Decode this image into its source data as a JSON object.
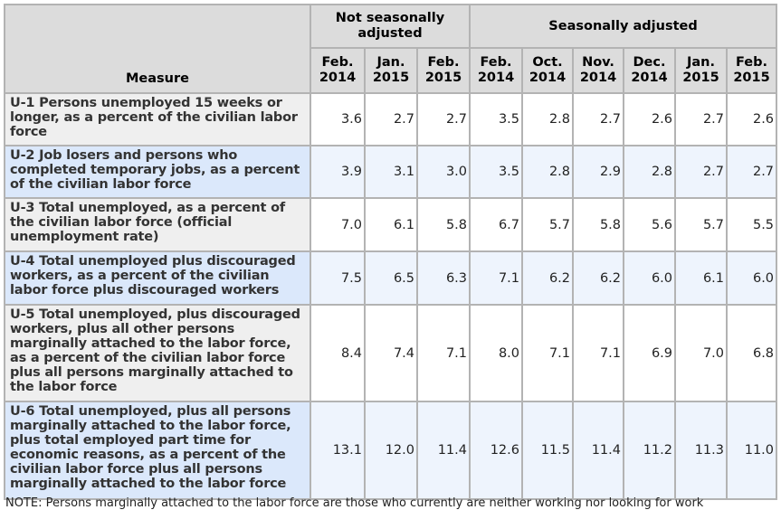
{
  "header": {
    "measure": "Measure",
    "group_nsa": "Not seasonally adjusted",
    "group_sa": "Seasonally adjusted",
    "columns": [
      [
        "Feb.",
        "2014"
      ],
      [
        "Jan.",
        "2015"
      ],
      [
        "Feb.",
        "2015"
      ],
      [
        "Feb.",
        "2014"
      ],
      [
        "Oct.",
        "2014"
      ],
      [
        "Nov.",
        "2014"
      ],
      [
        "Dec.",
        "2014"
      ],
      [
        "Jan.",
        "2015"
      ],
      [
        "Feb.",
        "2015"
      ]
    ]
  },
  "rows": [
    {
      "label": "U-1 Persons unemployed 15 weeks or longer, as a percent of the civilian labor force",
      "values": [
        "3.6",
        "2.7",
        "2.7",
        "3.5",
        "2.8",
        "2.7",
        "2.6",
        "2.7",
        "2.6"
      ]
    },
    {
      "label": "U-2 Job losers and persons who completed temporary jobs, as a percent of the civilian labor force",
      "values": [
        "3.9",
        "3.1",
        "3.0",
        "3.5",
        "2.8",
        "2.9",
        "2.8",
        "2.7",
        "2.7"
      ]
    },
    {
      "label": "U-3 Total unemployed, as a percent of the civilian labor force (official unemployment rate)",
      "values": [
        "7.0",
        "6.1",
        "5.8",
        "6.7",
        "5.7",
        "5.8",
        "5.6",
        "5.7",
        "5.5"
      ]
    },
    {
      "label": "U-4 Total unemployed plus discouraged workers, as a percent of the civilian labor force plus discouraged workers",
      "values": [
        "7.5",
        "6.5",
        "6.3",
        "7.1",
        "6.2",
        "6.2",
        "6.0",
        "6.1",
        "6.0"
      ]
    },
    {
      "label": "U-5 Total unemployed, plus discouraged workers, plus all other persons marginally attached to the labor force, as a percent of the civilian labor force plus all persons marginally attached to the labor force",
      "values": [
        "8.4",
        "7.4",
        "7.1",
        "8.0",
        "7.1",
        "7.1",
        "6.9",
        "7.0",
        "6.8"
      ]
    },
    {
      "label": "U-6 Total unemployed, plus all persons marginally attached to the labor force, plus total employed part time for economic reasons, as a percent of the civilian labor force plus all persons marginally attached to the labor force",
      "values": [
        "13.1",
        "12.0",
        "11.4",
        "12.6",
        "11.5",
        "11.4",
        "11.2",
        "11.3",
        "11.0"
      ]
    }
  ],
  "note": "NOTE: Persons marginally attached to the labor force are those who currently are neither working nor looking for work"
}
